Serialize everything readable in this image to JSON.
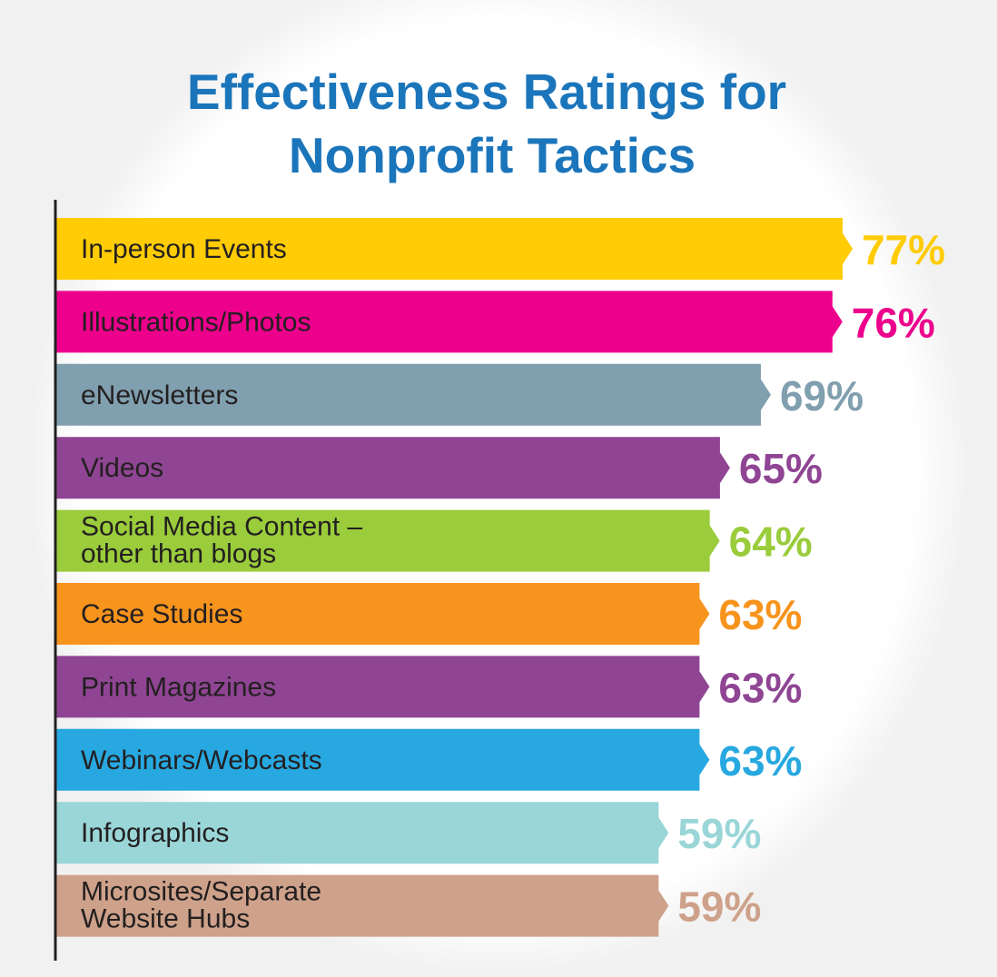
{
  "chart_data": {
    "type": "bar",
    "orientation": "horizontal",
    "title": "Effectiveness Ratings for Nonprofit Tactics",
    "title_lines": [
      "Effectiveness Ratings for",
      "Nonprofit Tactics"
    ],
    "value_suffix": "%",
    "grid": false,
    "legend": "none",
    "xlim": [
      0,
      100
    ],
    "categories": [
      "In-person Events",
      "Illustrations/Photos",
      "eNewsletters",
      "Videos",
      "Social Media Content – other than blogs",
      "Case Studies",
      "Print Magazines",
      "Webinars/Webcasts",
      "Infographics",
      "Microsites/Separate Website Hubs"
    ],
    "category_lines": [
      [
        "In-person Events"
      ],
      [
        "Illustrations/Photos"
      ],
      [
        "eNewsletters"
      ],
      [
        "Videos"
      ],
      [
        "Social Media Content –",
        "other than blogs"
      ],
      [
        "Case Studies"
      ],
      [
        "Print Magazines"
      ],
      [
        "Webinars/Webcasts"
      ],
      [
        "Infographics"
      ],
      [
        "Microsites/Separate",
        "Website Hubs"
      ]
    ],
    "values": [
      77,
      76,
      69,
      65,
      64,
      63,
      63,
      63,
      59,
      59
    ],
    "value_labels": [
      "77%",
      "76%",
      "69%",
      "65%",
      "64%",
      "63%",
      "63%",
      "63%",
      "59%",
      "59%"
    ],
    "colors": [
      "#ffcc05",
      "#ec008c",
      "#809faf",
      "#8f4593",
      "#9acc3b",
      "#f7941d",
      "#8f4593",
      "#27a8e0",
      "#9ad6d8",
      "#cea18a"
    ]
  },
  "style": {
    "title_color": "#1b75bb",
    "axis_color": "#231f20",
    "label_color": "#231f20"
  }
}
